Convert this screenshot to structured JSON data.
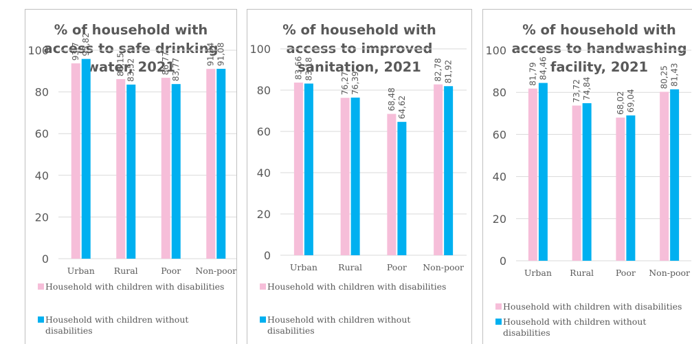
{
  "colors": {
    "pink": "#f6bed9",
    "blue": "#00b0f0",
    "grid": "#d9d9d9",
    "text": "#595959"
  },
  "chart_data": [
    {
      "type": "bar",
      "title": "% of household with\naccess to safe drinking\nwater, 2021",
      "categories": [
        "Urban",
        "Rural",
        "Poor",
        "Non-poor"
      ],
      "ylim": [
        0,
        100
      ],
      "yticks": [
        "0",
        "20",
        "40",
        "60",
        "80",
        "100"
      ],
      "grid": true,
      "legend_position": "bottom",
      "series": [
        {
          "name": "Household with children with disabilities",
          "values": [
            93.7,
            86.15,
            86.77,
            91.04
          ],
          "labels": [
            "93,7",
            "86,15",
            "86,77",
            "91,04"
          ]
        },
        {
          "name": "Household with children without disabilities",
          "values": [
            95.82,
            83.52,
            83.77,
            91.08
          ],
          "labels": [
            "95,82",
            "83,52",
            "83,77",
            "91,08"
          ]
        }
      ]
    },
    {
      "type": "bar",
      "title": "% of household with\naccess to improved\nsanitation, 2021",
      "categories": [
        "Urban",
        "Rural",
        "Poor",
        "Non-poor"
      ],
      "ylim": [
        0,
        100
      ],
      "yticks": [
        "0",
        "20",
        "40",
        "60",
        "80",
        "100"
      ],
      "grid": true,
      "legend_position": "bottom",
      "series": [
        {
          "name": "Household with children with disabilities",
          "values": [
            83.66,
            76.27,
            68.48,
            82.78
          ],
          "labels": [
            "83,66",
            "76,27",
            "68,48",
            "82,78"
          ]
        },
        {
          "name": "Household with children without disabilities",
          "values": [
            83.18,
            76.39,
            64.62,
            81.92
          ],
          "labels": [
            "83,18",
            "76,39",
            "64,62",
            "81,92"
          ]
        }
      ]
    },
    {
      "type": "bar",
      "title": "% of household with\naccess to handwashing\nfacility, 2021",
      "categories": [
        "Urban",
        "Rural",
        "Poor",
        "Non-poor"
      ],
      "ylim": [
        0,
        100
      ],
      "yticks": [
        "0",
        "20",
        "40",
        "60",
        "80",
        "100"
      ],
      "grid": true,
      "legend_position": "bottom",
      "series": [
        {
          "name": "Household with children with disabilities",
          "values": [
            81.79,
            73.72,
            68.02,
            80.25
          ],
          "labels": [
            "81,79",
            "73,72",
            "68,02",
            "80,25"
          ]
        },
        {
          "name": "Household with children without disabilities",
          "values": [
            84.46,
            74.84,
            69.04,
            81.43
          ],
          "labels": [
            "84,46",
            "74,84",
            "69,04",
            "81,43"
          ]
        }
      ]
    }
  ]
}
